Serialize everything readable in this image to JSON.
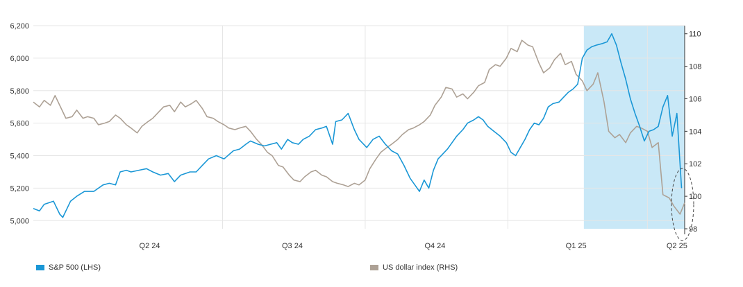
{
  "chart_data": {
    "type": "line",
    "title": "",
    "xlabel": "",
    "ylabel": "",
    "x_ticks": [
      "Q2 24",
      "Q3 24",
      "Q4 24",
      "Q1 25",
      "Q2 25"
    ],
    "y_left": {
      "ticks": [
        "6,200",
        "6,000",
        "5,800",
        "5,600",
        "5,400",
        "5,200",
        "5,000"
      ],
      "range": [
        4950,
        6200
      ]
    },
    "y_right": {
      "ticks": [
        "110",
        "108",
        "106",
        "104",
        "102",
        "100",
        "98"
      ],
      "range": [
        98,
        110.5
      ]
    },
    "grid": true,
    "legend_position": "bottom",
    "highlight_region": {
      "from": "2025-02-19",
      "to": "2025-04-25",
      "color": "#c9e8f7"
    },
    "colors": {
      "sp500": "#1a97d6",
      "dxy": "#ada195",
      "grid": "#e6e6e6"
    },
    "series": [
      {
        "name": "S&P 500 (LHS)",
        "axis": "left",
        "points": [
          [
            "2024-03-01",
            5075
          ],
          [
            "2024-03-05",
            5060
          ],
          [
            "2024-03-08",
            5100
          ],
          [
            "2024-03-14",
            5120
          ],
          [
            "2024-03-18",
            5040
          ],
          [
            "2024-03-20",
            5020
          ],
          [
            "2024-03-25",
            5120
          ],
          [
            "2024-03-29",
            5150
          ],
          [
            "2024-04-03",
            5180
          ],
          [
            "2024-04-09",
            5180
          ],
          [
            "2024-04-15",
            5220
          ],
          [
            "2024-04-19",
            5230
          ],
          [
            "2024-04-23",
            5220
          ],
          [
            "2024-04-26",
            5300
          ],
          [
            "2024-04-30",
            5310
          ],
          [
            "2024-05-03",
            5300
          ],
          [
            "2024-05-08",
            5310
          ],
          [
            "2024-05-13",
            5320
          ],
          [
            "2024-05-17",
            5300
          ],
          [
            "2024-05-22",
            5280
          ],
          [
            "2024-05-27",
            5290
          ],
          [
            "2024-05-31",
            5240
          ],
          [
            "2024-06-04",
            5280
          ],
          [
            "2024-06-10",
            5300
          ],
          [
            "2024-06-14",
            5300
          ],
          [
            "2024-06-18",
            5340
          ],
          [
            "2024-06-22",
            5380
          ],
          [
            "2024-06-27",
            5400
          ],
          [
            "2024-07-02",
            5380
          ],
          [
            "2024-07-08",
            5430
          ],
          [
            "2024-07-12",
            5440
          ],
          [
            "2024-07-16",
            5470
          ],
          [
            "2024-07-19",
            5490
          ],
          [
            "2024-07-24",
            5470
          ],
          [
            "2024-07-28",
            5460
          ],
          [
            "2024-08-01",
            5470
          ],
          [
            "2024-08-05",
            5480
          ],
          [
            "2024-08-08",
            5440
          ],
          [
            "2024-08-12",
            5500
          ],
          [
            "2024-08-15",
            5480
          ],
          [
            "2024-08-19",
            5470
          ],
          [
            "2024-08-22",
            5500
          ],
          [
            "2024-08-26",
            5520
          ],
          [
            "2024-08-30",
            5560
          ],
          [
            "2024-09-03",
            5570
          ],
          [
            "2024-09-06",
            5580
          ],
          [
            "2024-09-10",
            5470
          ],
          [
            "2024-09-12",
            5610
          ],
          [
            "2024-09-16",
            5620
          ],
          [
            "2024-09-20",
            5660
          ],
          [
            "2024-09-24",
            5560
          ],
          [
            "2024-09-27",
            5500
          ],
          [
            "2024-10-02",
            5450
          ],
          [
            "2024-10-06",
            5500
          ],
          [
            "2024-10-10",
            5520
          ],
          [
            "2024-10-14",
            5470
          ],
          [
            "2024-10-18",
            5430
          ],
          [
            "2024-10-22",
            5410
          ],
          [
            "2024-10-26",
            5340
          ],
          [
            "2024-10-30",
            5260
          ],
          [
            "2024-11-02",
            5220
          ],
          [
            "2024-11-05",
            5180
          ],
          [
            "2024-11-08",
            5250
          ],
          [
            "2024-11-11",
            5200
          ],
          [
            "2024-11-14",
            5310
          ],
          [
            "2024-11-17",
            5380
          ],
          [
            "2024-11-20",
            5410
          ],
          [
            "2024-11-23",
            5440
          ],
          [
            "2024-11-26",
            5480
          ],
          [
            "2024-11-29",
            5520
          ],
          [
            "2024-12-03",
            5560
          ],
          [
            "2024-12-06",
            5600
          ],
          [
            "2024-12-10",
            5620
          ],
          [
            "2024-12-13",
            5640
          ],
          [
            "2024-12-16",
            5620
          ],
          [
            "2024-12-19",
            5580
          ],
          [
            "2024-12-23",
            5550
          ],
          [
            "2024-12-27",
            5520
          ],
          [
            "2024-12-31",
            5480
          ],
          [
            "2025-01-03",
            5420
          ],
          [
            "2025-01-06",
            5400
          ],
          [
            "2025-01-09",
            5450
          ],
          [
            "2025-01-12",
            5500
          ],
          [
            "2025-01-15",
            5560
          ],
          [
            "2025-01-18",
            5600
          ],
          [
            "2025-01-21",
            5590
          ],
          [
            "2025-01-24",
            5630
          ],
          [
            "2025-01-27",
            5700
          ],
          [
            "2025-01-30",
            5720
          ],
          [
            "2025-02-03",
            5730
          ],
          [
            "2025-02-06",
            5760
          ],
          [
            "2025-02-09",
            5790
          ],
          [
            "2025-02-12",
            5810
          ],
          [
            "2025-02-15",
            5840
          ],
          [
            "2025-02-18",
            6000
          ],
          [
            "2025-02-21",
            6050
          ],
          [
            "2025-02-24",
            6070
          ],
          [
            "2025-02-27",
            6080
          ],
          [
            "2025-03-03",
            6090
          ],
          [
            "2025-03-06",
            6100
          ],
          [
            "2025-03-09",
            6150
          ],
          [
            "2025-03-12",
            6080
          ],
          [
            "2025-03-15",
            5970
          ],
          [
            "2025-03-18",
            5870
          ],
          [
            "2025-03-21",
            5750
          ],
          [
            "2025-03-24",
            5660
          ],
          [
            "2025-03-27",
            5580
          ],
          [
            "2025-03-30",
            5490
          ],
          [
            "2025-04-02",
            5550
          ],
          [
            "2025-04-05",
            5560
          ],
          [
            "2025-04-08",
            5580
          ],
          [
            "2025-04-11",
            5700
          ],
          [
            "2025-04-14",
            5770
          ],
          [
            "2025-04-17",
            5520
          ],
          [
            "2025-04-20",
            5660
          ],
          [
            "2025-04-23",
            5200
          ]
        ]
      },
      {
        "name": "US dollar index (RHS)",
        "axis": "right",
        "points": [
          [
            "2024-03-01",
            105.8
          ],
          [
            "2024-03-05",
            105.5
          ],
          [
            "2024-03-08",
            105.9
          ],
          [
            "2024-03-12",
            105.6
          ],
          [
            "2024-03-15",
            106.2
          ],
          [
            "2024-03-19",
            105.4
          ],
          [
            "2024-03-22",
            104.8
          ],
          [
            "2024-03-26",
            104.9
          ],
          [
            "2024-03-29",
            105.3
          ],
          [
            "2024-04-02",
            104.8
          ],
          [
            "2024-04-05",
            104.9
          ],
          [
            "2024-04-09",
            104.8
          ],
          [
            "2024-04-12",
            104.4
          ],
          [
            "2024-04-16",
            104.5
          ],
          [
            "2024-04-19",
            104.6
          ],
          [
            "2024-04-23",
            105.0
          ],
          [
            "2024-04-26",
            104.8
          ],
          [
            "2024-04-30",
            104.4
          ],
          [
            "2024-05-03",
            104.2
          ],
          [
            "2024-05-07",
            103.9
          ],
          [
            "2024-05-10",
            104.3
          ],
          [
            "2024-05-14",
            104.6
          ],
          [
            "2024-05-17",
            104.8
          ],
          [
            "2024-05-21",
            105.2
          ],
          [
            "2024-05-24",
            105.5
          ],
          [
            "2024-05-28",
            105.6
          ],
          [
            "2024-05-31",
            105.2
          ],
          [
            "2024-06-04",
            105.8
          ],
          [
            "2024-06-07",
            105.5
          ],
          [
            "2024-06-11",
            105.7
          ],
          [
            "2024-06-14",
            105.9
          ],
          [
            "2024-06-18",
            105.4
          ],
          [
            "2024-06-21",
            104.9
          ],
          [
            "2024-06-25",
            104.8
          ],
          [
            "2024-06-28",
            104.6
          ],
          [
            "2024-07-02",
            104.4
          ],
          [
            "2024-07-05",
            104.2
          ],
          [
            "2024-07-09",
            104.1
          ],
          [
            "2024-07-12",
            104.2
          ],
          [
            "2024-07-16",
            104.3
          ],
          [
            "2024-07-19",
            104.0
          ],
          [
            "2024-07-23",
            103.5
          ],
          [
            "2024-07-26",
            103.2
          ],
          [
            "2024-07-30",
            102.7
          ],
          [
            "2024-08-02",
            102.5
          ],
          [
            "2024-08-06",
            101.9
          ],
          [
            "2024-08-09",
            101.8
          ],
          [
            "2024-08-13",
            101.3
          ],
          [
            "2024-08-16",
            101.0
          ],
          [
            "2024-08-20",
            100.9
          ],
          [
            "2024-08-23",
            101.2
          ],
          [
            "2024-08-27",
            101.5
          ],
          [
            "2024-08-30",
            101.6
          ],
          [
            "2024-09-03",
            101.3
          ],
          [
            "2024-09-06",
            101.2
          ],
          [
            "2024-09-10",
            100.9
          ],
          [
            "2024-09-13",
            100.8
          ],
          [
            "2024-09-17",
            100.7
          ],
          [
            "2024-09-20",
            100.6
          ],
          [
            "2024-09-24",
            100.8
          ],
          [
            "2024-09-27",
            100.7
          ],
          [
            "2024-10-01",
            101.0
          ],
          [
            "2024-10-04",
            101.7
          ],
          [
            "2024-10-08",
            102.3
          ],
          [
            "2024-10-11",
            102.7
          ],
          [
            "2024-10-15",
            103.0
          ],
          [
            "2024-10-18",
            103.2
          ],
          [
            "2024-10-22",
            103.5
          ],
          [
            "2024-10-25",
            103.8
          ],
          [
            "2024-10-29",
            104.1
          ],
          [
            "2024-11-01",
            104.2
          ],
          [
            "2024-11-05",
            104.4
          ],
          [
            "2024-11-08",
            104.6
          ],
          [
            "2024-11-12",
            105.0
          ],
          [
            "2024-11-15",
            105.6
          ],
          [
            "2024-11-19",
            106.1
          ],
          [
            "2024-11-22",
            106.7
          ],
          [
            "2024-11-26",
            106.6
          ],
          [
            "2024-11-29",
            106.1
          ],
          [
            "2024-12-03",
            106.3
          ],
          [
            "2024-12-06",
            106.0
          ],
          [
            "2024-12-10",
            106.4
          ],
          [
            "2024-12-13",
            106.8
          ],
          [
            "2024-12-17",
            107.0
          ],
          [
            "2024-12-20",
            107.8
          ],
          [
            "2024-12-24",
            108.1
          ],
          [
            "2024-12-27",
            108.0
          ],
          [
            "2024-12-31",
            108.5
          ],
          [
            "2025-01-03",
            109.1
          ],
          [
            "2025-01-07",
            108.9
          ],
          [
            "2025-01-10",
            109.6
          ],
          [
            "2025-01-14",
            109.3
          ],
          [
            "2025-01-17",
            109.2
          ],
          [
            "2025-01-21",
            108.2
          ],
          [
            "2025-01-24",
            107.6
          ],
          [
            "2025-01-28",
            107.9
          ],
          [
            "2025-01-31",
            108.4
          ],
          [
            "2025-02-04",
            108.8
          ],
          [
            "2025-02-07",
            108.1
          ],
          [
            "2025-02-11",
            108.3
          ],
          [
            "2025-02-14",
            107.5
          ],
          [
            "2025-02-18",
            107.1
          ],
          [
            "2025-02-21",
            106.5
          ],
          [
            "2025-02-25",
            106.9
          ],
          [
            "2025-02-28",
            107.6
          ],
          [
            "2025-03-04",
            105.8
          ],
          [
            "2025-03-07",
            104.0
          ],
          [
            "2025-03-11",
            103.6
          ],
          [
            "2025-03-14",
            103.8
          ],
          [
            "2025-03-18",
            103.3
          ],
          [
            "2025-03-21",
            103.9
          ],
          [
            "2025-03-25",
            104.3
          ],
          [
            "2025-03-28",
            104.2
          ],
          [
            "2025-04-01",
            104.0
          ],
          [
            "2025-04-04",
            103.0
          ],
          [
            "2025-04-08",
            103.3
          ],
          [
            "2025-04-11",
            100.1
          ],
          [
            "2025-04-15",
            99.9
          ],
          [
            "2025-04-18",
            99.4
          ],
          [
            "2025-04-22",
            98.9
          ],
          [
            "2025-04-25",
            99.6
          ]
        ]
      }
    ]
  }
}
